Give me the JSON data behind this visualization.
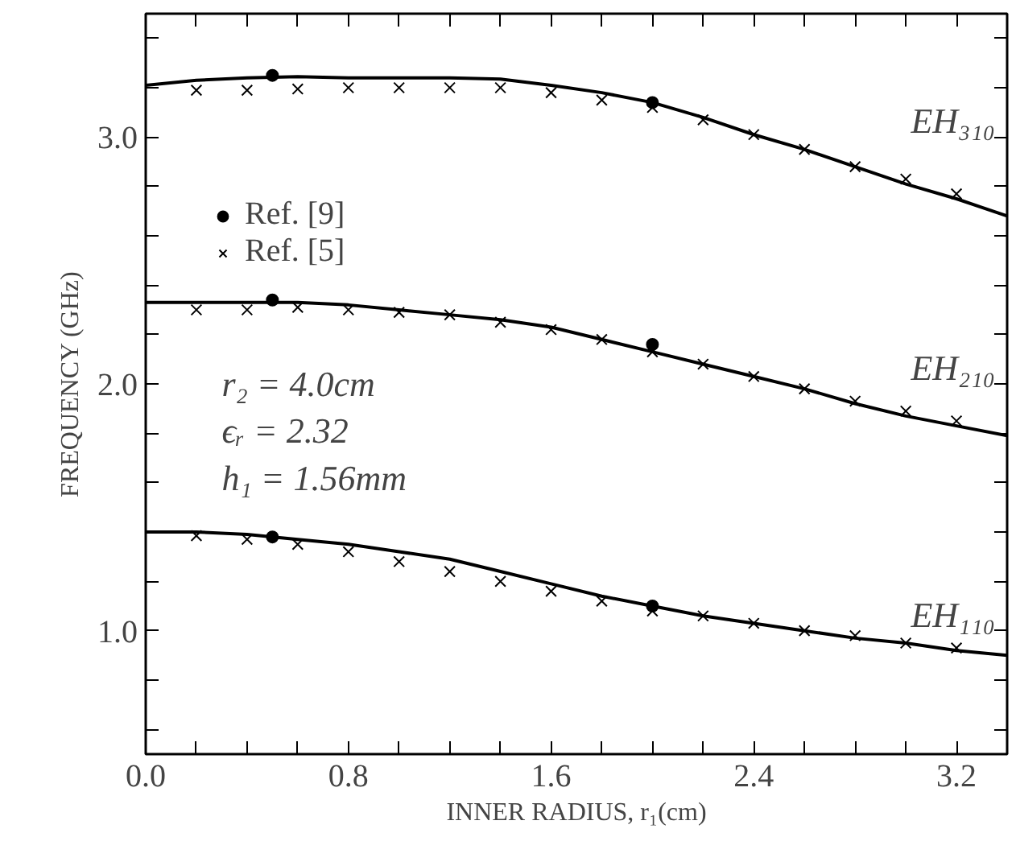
{
  "chart_data": {
    "type": "line",
    "xlabel": "INNER RADIUS, r₁(cm)",
    "ylabel": "FREQUENCY (GHz)",
    "xlim": [
      0,
      3.4
    ],
    "ylim": [
      0.5,
      3.5
    ],
    "xticks": [
      {
        "value": 0,
        "label": "0.0"
      },
      {
        "value": 0.2,
        "label": null
      },
      {
        "value": 0.4,
        "label": null
      },
      {
        "value": 0.6,
        "label": null
      },
      {
        "value": 0.8,
        "label": "0.8"
      },
      {
        "value": 1.0,
        "label": null
      },
      {
        "value": 1.2,
        "label": null
      },
      {
        "value": 1.4,
        "label": null
      },
      {
        "value": 1.6,
        "label": "1.6"
      },
      {
        "value": 1.8,
        "label": null
      },
      {
        "value": 2.0,
        "label": null
      },
      {
        "value": 2.2,
        "label": null
      },
      {
        "value": 2.4,
        "label": "2.4"
      },
      {
        "value": 2.6,
        "label": null
      },
      {
        "value": 2.8,
        "label": null
      },
      {
        "value": 3.0,
        "label": null
      },
      {
        "value": 3.2,
        "label": "3.2"
      }
    ],
    "yticks": [
      {
        "value": 0.6,
        "label": null
      },
      {
        "value": 0.8,
        "label": null
      },
      {
        "value": 1.0,
        "label": "1.0"
      },
      {
        "value": 1.2,
        "label": null
      },
      {
        "value": 1.4,
        "label": null
      },
      {
        "value": 1.6,
        "label": null
      },
      {
        "value": 1.8,
        "label": null
      },
      {
        "value": 2.0,
        "label": "2.0"
      },
      {
        "value": 2.2,
        "label": null
      },
      {
        "value": 2.4,
        "label": null
      },
      {
        "value": 2.6,
        "label": null
      },
      {
        "value": 2.8,
        "label": null
      },
      {
        "value": 3.0,
        "label": "3.0"
      },
      {
        "value": 3.2,
        "label": null
      },
      {
        "value": 3.4,
        "label": null
      }
    ],
    "grid": false,
    "legend": "top left",
    "line_style": "solid",
    "series": [
      {
        "color": "#000000",
        "marker": "none",
        "x": [
          0,
          0.2,
          0.4,
          0.6,
          0.8,
          1.0,
          1.2,
          1.4,
          1.6,
          1.8,
          2.0,
          2.2,
          2.4,
          2.6,
          2.8,
          3.0,
          3.2,
          3.4
        ],
        "values": [
          3.21,
          3.23,
          3.24,
          3.245,
          3.24,
          3.24,
          3.24,
          3.235,
          3.21,
          3.18,
          3.14,
          3.08,
          3.01,
          2.95,
          2.88,
          2.81,
          2.75,
          2.68
        ]
      },
      {
        "color": "#000000",
        "marker": "none",
        "x": [
          0,
          0.2,
          0.4,
          0.6,
          0.8,
          1.0,
          1.2,
          1.4,
          1.6,
          1.8,
          2.0,
          2.2,
          2.4,
          2.6,
          2.8,
          3.0,
          3.2,
          3.4
        ],
        "values": [
          2.33,
          2.33,
          2.33,
          2.33,
          2.32,
          2.3,
          2.28,
          2.26,
          2.23,
          2.18,
          2.13,
          2.08,
          2.03,
          1.98,
          1.92,
          1.87,
          1.83,
          1.79
        ]
      },
      {
        "color": "#000000",
        "marker": "none",
        "x": [
          0,
          0.2,
          0.4,
          0.6,
          0.8,
          1.0,
          1.2,
          1.4,
          1.6,
          1.8,
          2.0,
          2.2,
          2.4,
          2.6,
          2.8,
          3.0,
          3.2,
          3.4
        ],
        "values": [
          1.4,
          1.4,
          1.39,
          1.37,
          1.35,
          1.32,
          1.29,
          1.24,
          1.19,
          1.14,
          1.1,
          1.06,
          1.03,
          1.0,
          0.97,
          0.95,
          0.92,
          0.9
        ]
      },
      {
        "type": "scatter",
        "name": "Ref. [9]",
        "color": "#000000",
        "marker": "circle",
        "x": [
          0.5,
          2.0,
          0.5,
          2.0,
          0.5,
          2.0
        ],
        "values": [
          3.25,
          3.14,
          2.34,
          2.16,
          1.38,
          1.1
        ]
      },
      {
        "type": "scatter",
        "name": "Ref. [5]",
        "color": "#000000",
        "marker": "cross",
        "x": [
          0.2,
          0.4,
          0.6,
          0.8,
          1.0,
          1.2,
          1.4,
          1.6,
          1.8,
          2.0,
          2.2,
          2.4,
          2.6,
          2.8,
          3.0,
          3.2,
          0.2,
          0.4,
          0.6,
          0.8,
          1.0,
          1.2,
          1.4,
          1.6,
          1.8,
          2.0,
          2.2,
          2.4,
          2.6,
          2.8,
          3.0,
          3.2,
          0.2,
          0.4,
          0.6,
          0.8,
          1.0,
          1.2,
          1.4,
          1.6,
          1.8,
          2.0,
          2.2,
          2.4,
          2.6,
          2.8,
          3.0,
          3.2
        ],
        "values": [
          3.19,
          3.19,
          3.195,
          3.2,
          3.2,
          3.2,
          3.2,
          3.18,
          3.15,
          3.12,
          3.07,
          3.01,
          2.95,
          2.88,
          2.83,
          2.77,
          2.3,
          2.3,
          2.31,
          2.3,
          2.29,
          2.28,
          2.25,
          2.22,
          2.18,
          2.13,
          2.08,
          2.03,
          1.98,
          1.93,
          1.89,
          1.85,
          1.385,
          1.37,
          1.35,
          1.32,
          1.28,
          1.24,
          1.2,
          1.16,
          1.12,
          1.08,
          1.06,
          1.03,
          1.0,
          0.98,
          0.95,
          0.93
        ]
      }
    ],
    "annotations": [
      "EH₃₁₀",
      "EH₂₁₀",
      "EH₁₁₀",
      "r₂ = 4.0cm",
      "ϵᵣ = 2.32",
      "h₁ = 1.56mm"
    ]
  }
}
